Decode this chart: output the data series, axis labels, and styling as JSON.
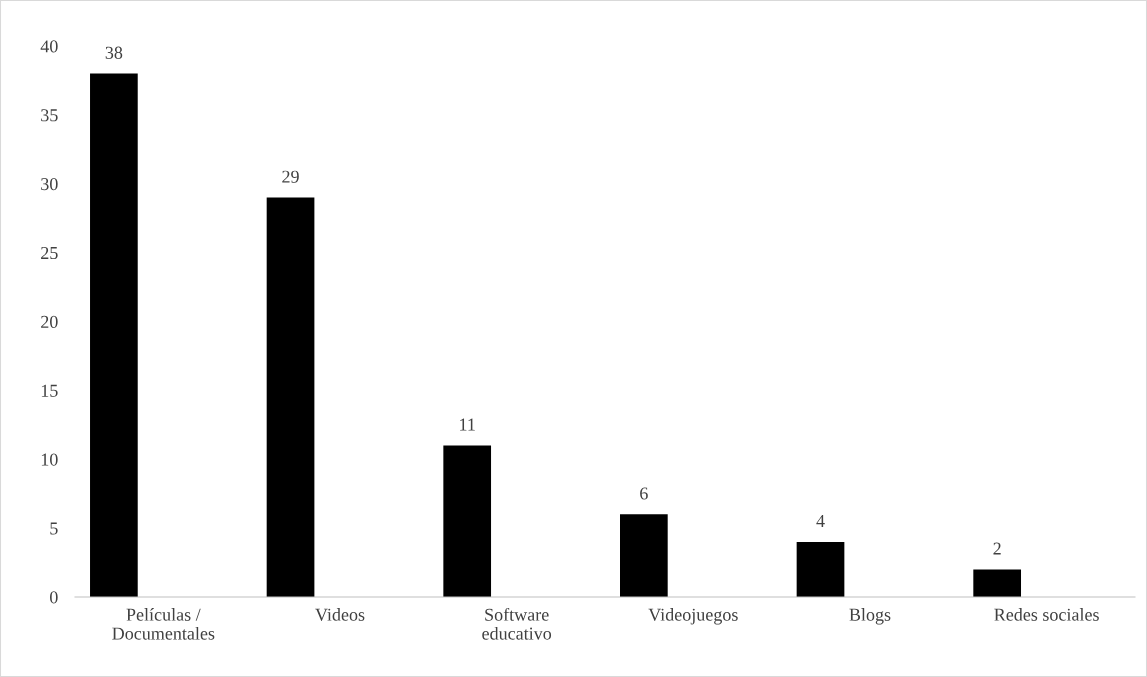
{
  "chart_data": {
    "type": "bar",
    "categories": [
      "Películas /\nDocumentales",
      "Videos",
      "Software\neducativo",
      "Videojuegos",
      "Blogs",
      "Redes sociales"
    ],
    "values": [
      38,
      29,
      11,
      6,
      4,
      2
    ],
    "color": "#000000",
    "ylim": [
      0,
      40
    ],
    "yticks": [
      0,
      5,
      10,
      15,
      20,
      25,
      30,
      35,
      40
    ],
    "grid": false,
    "data_labels": true
  }
}
